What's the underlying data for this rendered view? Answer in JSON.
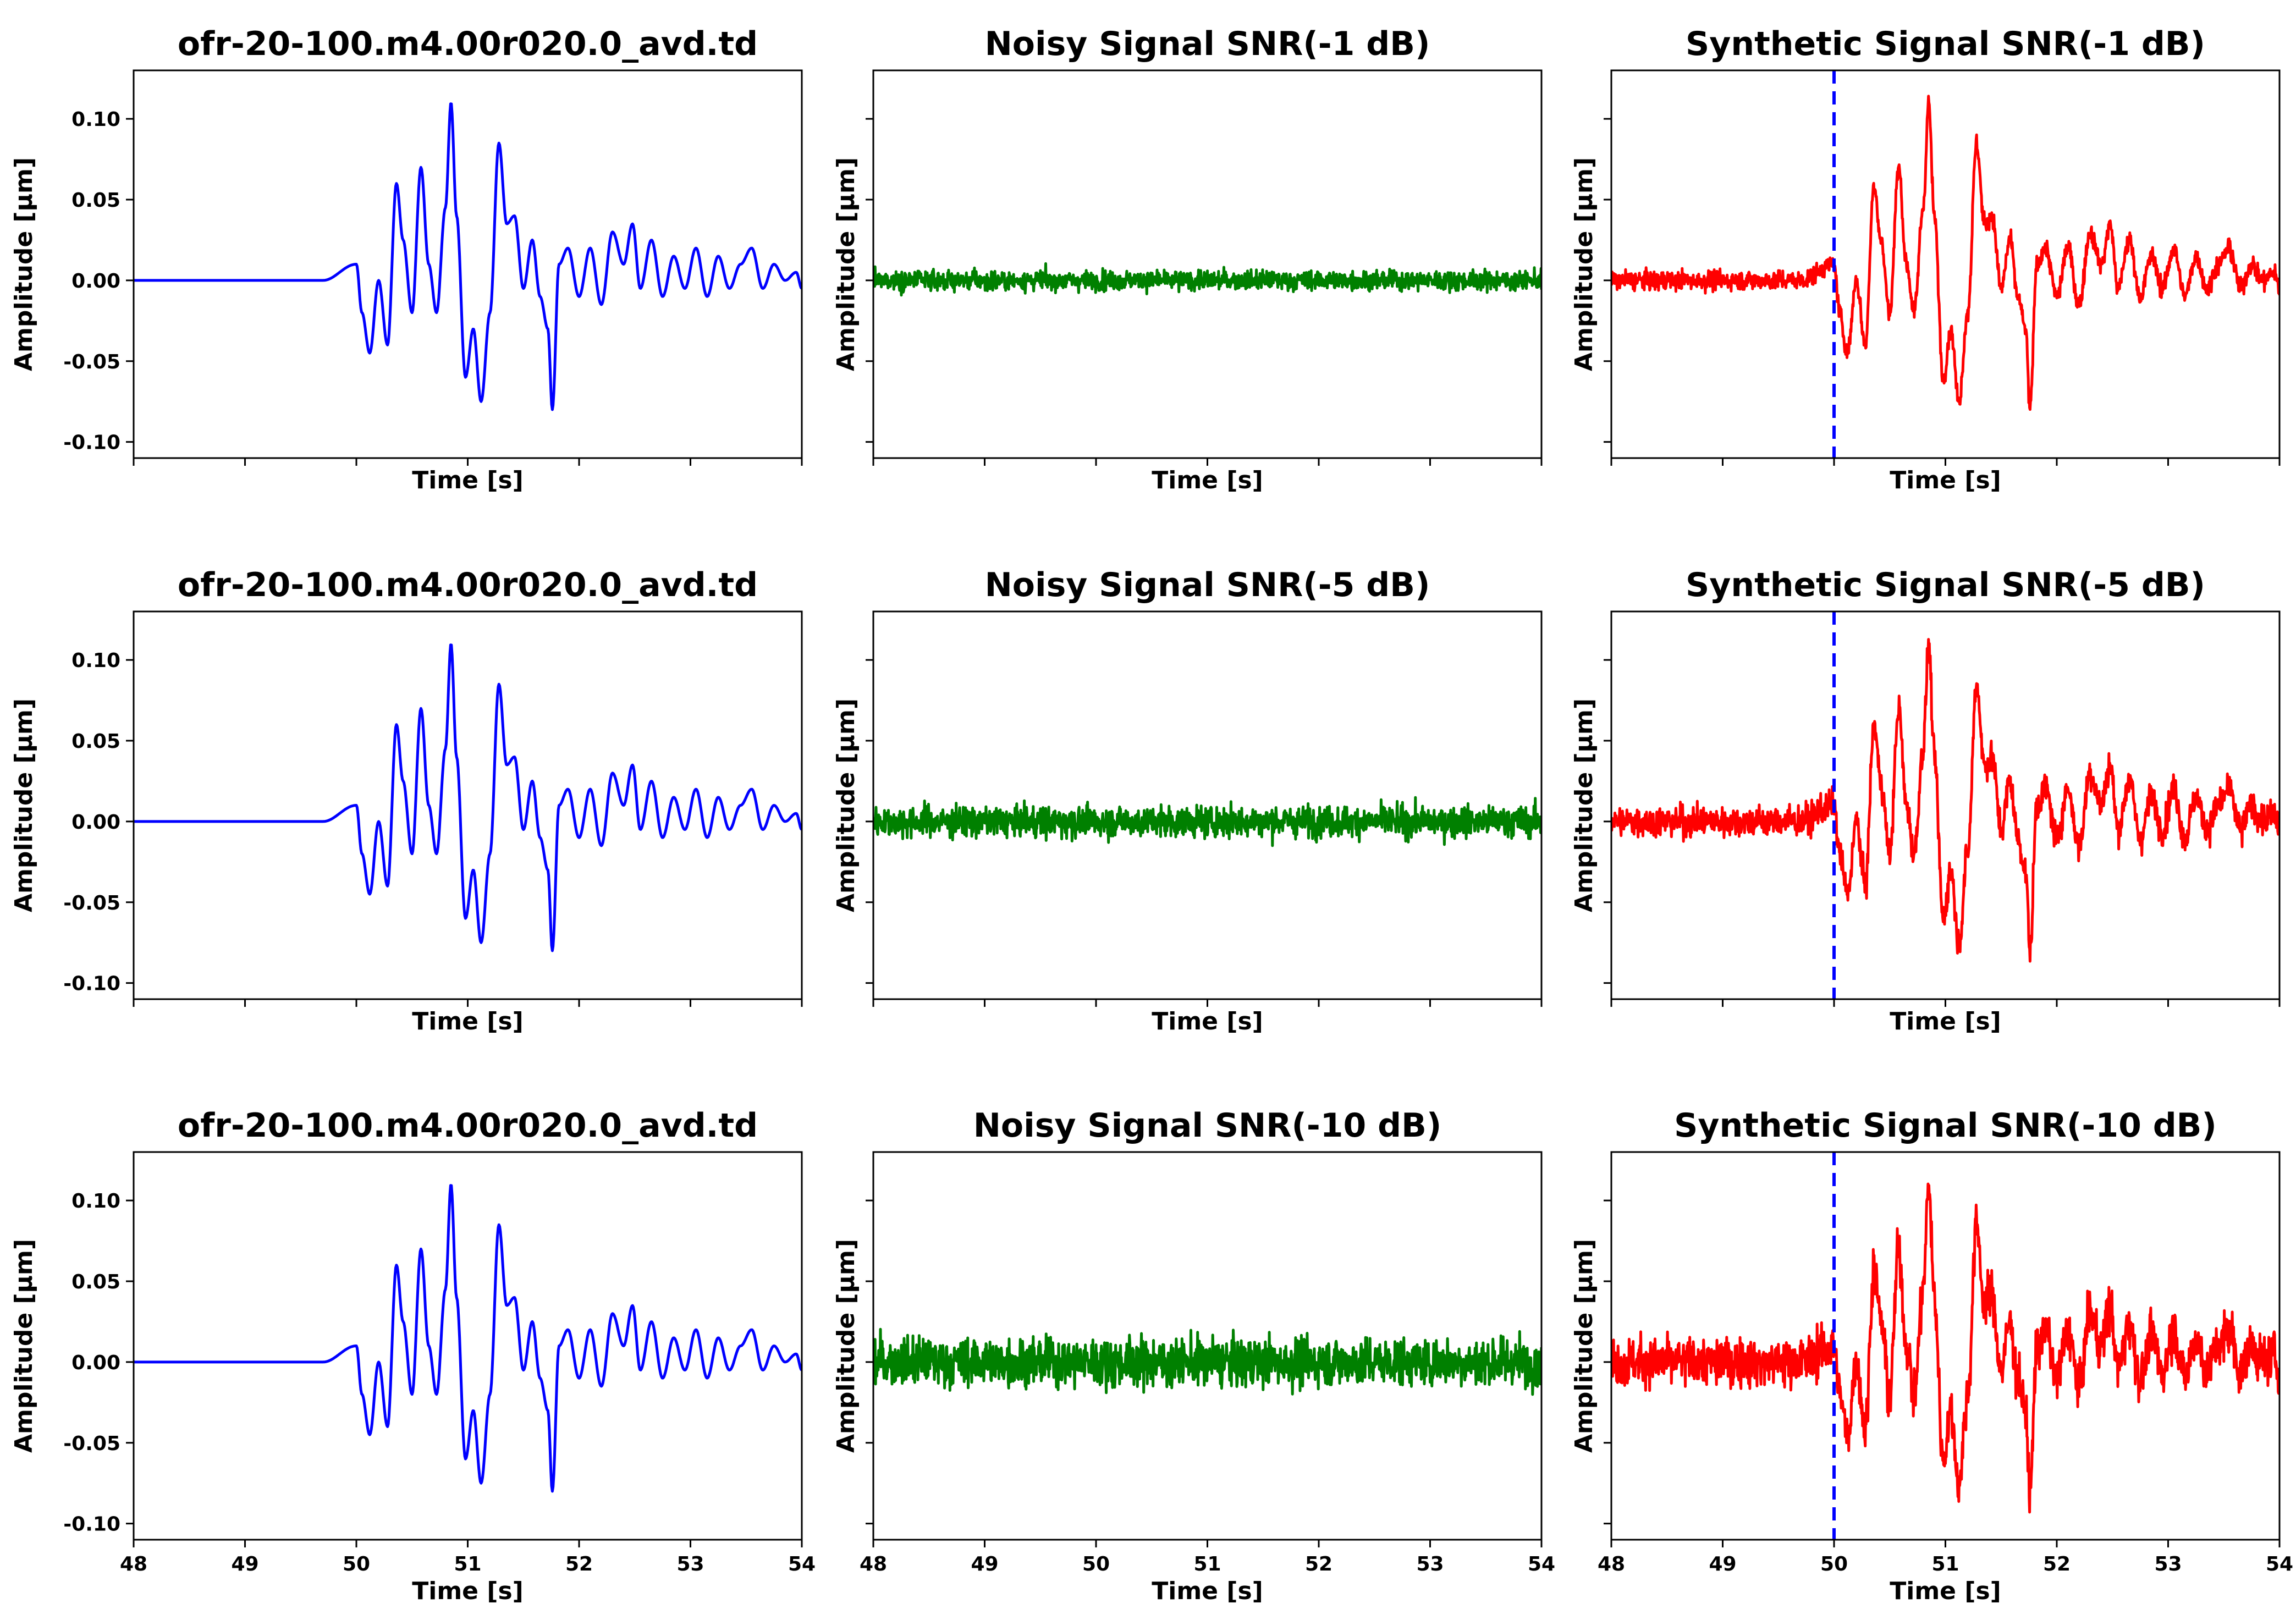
{
  "chart_data": [
    {
      "type": "line",
      "kind": "clean",
      "title": "ofr-20-100.m4.00r020.0_avd.td",
      "xlabel": "Time [s]",
      "ylabel": "Amplitude [µm]",
      "xlim": [
        48,
        54
      ],
      "ylim": [
        -0.11,
        0.13
      ],
      "yticks": [
        "0.10",
        "0.05",
        "0.00",
        "-0.05",
        "-0.10"
      ],
      "xticks": [],
      "color": "#0000ff",
      "noise_amp": 0,
      "onset": null,
      "events": {
        "x": [
          48,
          49.7,
          50.0,
          50.05,
          50.12,
          50.2,
          50.28,
          50.36,
          50.42,
          50.5,
          50.58,
          50.65,
          50.72,
          50.8,
          50.85,
          50.9,
          50.98,
          51.05,
          51.12,
          51.2,
          51.28,
          51.35,
          51.42,
          51.5,
          51.58,
          51.65,
          51.72,
          51.76,
          51.82,
          51.9,
          52.0,
          52.1,
          52.2,
          52.3,
          52.4,
          52.48,
          52.55,
          52.65,
          52.75,
          52.85,
          52.95,
          53.05,
          53.15,
          53.25,
          53.35,
          53.45,
          53.55,
          53.65,
          53.75,
          53.85,
          53.95,
          54.0
        ],
        "y": [
          0,
          0,
          0.01,
          -0.02,
          -0.045,
          0.0,
          -0.04,
          0.06,
          0.025,
          -0.02,
          0.07,
          0.01,
          -0.02,
          0.045,
          0.11,
          0.04,
          -0.06,
          -0.03,
          -0.075,
          -0.02,
          0.085,
          0.035,
          0.04,
          -0.005,
          0.025,
          -0.01,
          -0.03,
          -0.08,
          0.01,
          0.02,
          -0.01,
          0.02,
          -0.015,
          0.03,
          0.01,
          0.035,
          -0.005,
          0.025,
          -0.01,
          0.015,
          -0.005,
          0.02,
          -0.01,
          0.015,
          -0.005,
          0.01,
          0.02,
          -0.005,
          0.01,
          0.0,
          0.005,
          -0.005
        ]
      }
    },
    {
      "type": "line",
      "kind": "noise",
      "title": "Noisy Signal SNR(-1 dB)",
      "xlabel": "Time [s]",
      "ylabel": "Amplitude [µm]",
      "xlim": [
        48,
        54
      ],
      "ylim": [
        -0.11,
        0.13
      ],
      "yticks": [],
      "xticks": [],
      "color": "#008000",
      "noise_amp": 0.01,
      "onset": null
    },
    {
      "type": "line",
      "kind": "synthetic",
      "title": "Synthetic Signal SNR(-1 dB)",
      "xlabel": "Time [s]",
      "ylabel": "Amplitude [µm]",
      "xlim": [
        48,
        54
      ],
      "ylim": [
        -0.11,
        0.13
      ],
      "yticks": [],
      "xticks": [],
      "color": "#ff0000",
      "noise_amp": 0.01,
      "onset": 50.0
    },
    {
      "type": "line",
      "kind": "clean",
      "title": "ofr-20-100.m4.00r020.0_avd.td",
      "xlabel": "Time [s]",
      "ylabel": "Amplitude [µm]",
      "xlim": [
        48,
        54
      ],
      "ylim": [
        -0.11,
        0.13
      ],
      "yticks": [
        "0.10",
        "0.05",
        "0.00",
        "-0.05",
        "-0.10"
      ],
      "xticks": [],
      "color": "#0000ff",
      "noise_amp": 0,
      "onset": null
    },
    {
      "type": "line",
      "kind": "noise",
      "title": "Noisy Signal SNR(-5 dB)",
      "xlabel": "Time [s]",
      "ylabel": "Amplitude [µm]",
      "xlim": [
        48,
        54
      ],
      "ylim": [
        -0.11,
        0.13
      ],
      "yticks": [],
      "xticks": [],
      "color": "#008000",
      "noise_amp": 0.016,
      "onset": null
    },
    {
      "type": "line",
      "kind": "synthetic",
      "title": "Synthetic Signal SNR(-5 dB)",
      "xlabel": "Time [s]",
      "ylabel": "Amplitude [µm]",
      "xlim": [
        48,
        54
      ],
      "ylim": [
        -0.11,
        0.13
      ],
      "yticks": [],
      "xticks": [],
      "color": "#ff0000",
      "noise_amp": 0.016,
      "onset": 50.0
    },
    {
      "type": "line",
      "kind": "clean",
      "title": "ofr-20-100.m4.00r020.0_avd.td",
      "xlabel": "Time [s]",
      "ylabel": "Amplitude [µm]",
      "xlim": [
        48,
        54
      ],
      "ylim": [
        -0.11,
        0.13
      ],
      "yticks": [
        "0.10",
        "0.05",
        "0.00",
        "-0.05",
        "-0.10"
      ],
      "xticks": [
        "48",
        "49",
        "50",
        "51",
        "52",
        "53",
        "54"
      ],
      "color": "#0000ff",
      "noise_amp": 0,
      "onset": null
    },
    {
      "type": "line",
      "kind": "noise",
      "title": "Noisy Signal SNR(-10 dB)",
      "xlabel": "Time [s]",
      "ylabel": "Amplitude [µm]",
      "xlim": [
        48,
        54
      ],
      "ylim": [
        -0.11,
        0.13
      ],
      "yticks": [],
      "xticks": [
        "48",
        "49",
        "50",
        "51",
        "52",
        "53",
        "54"
      ],
      "color": "#008000",
      "noise_amp": 0.025,
      "onset": null
    },
    {
      "type": "line",
      "kind": "synthetic",
      "title": "Synthetic Signal SNR(-10 dB)",
      "xlabel": "Time [s]",
      "ylabel": "Amplitude [µm]",
      "xlim": [
        48,
        54
      ],
      "ylim": [
        -0.11,
        0.13
      ],
      "yticks": [],
      "xticks": [
        "48",
        "49",
        "50",
        "51",
        "52",
        "53",
        "54"
      ],
      "color": "#ff0000",
      "noise_amp": 0.025,
      "onset": 50.0
    }
  ]
}
